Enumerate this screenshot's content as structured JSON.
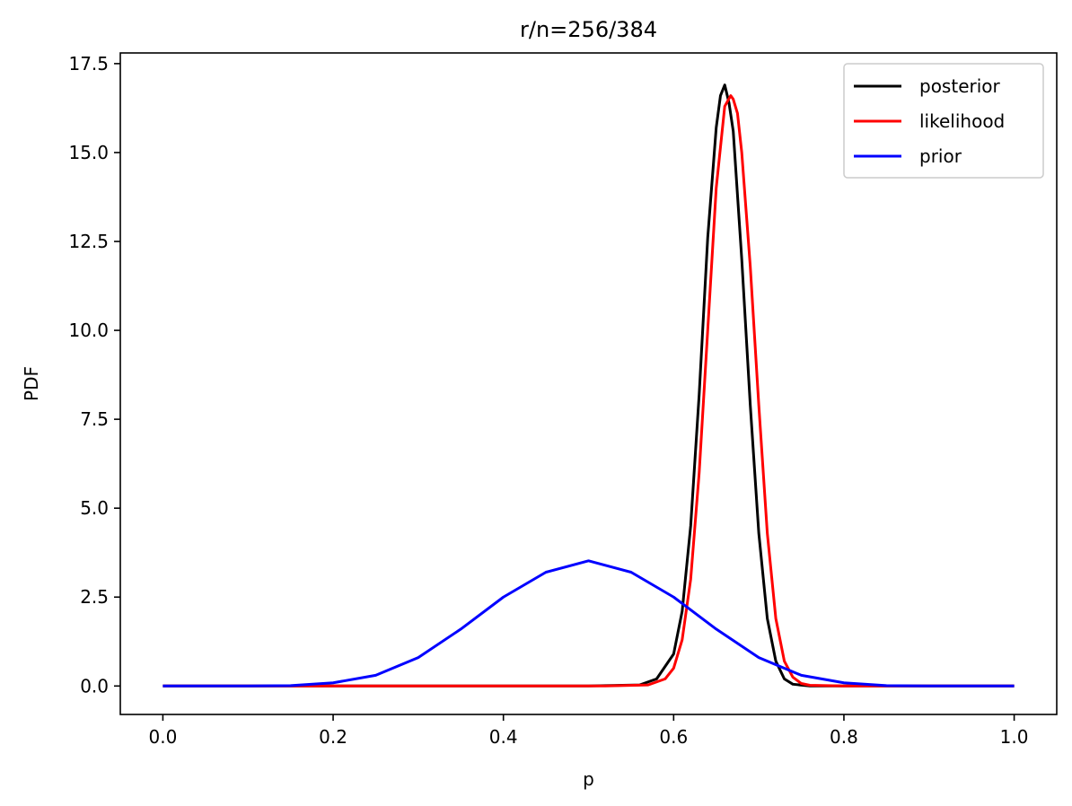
{
  "chart_data": {
    "type": "line",
    "title": "r/n=256/384",
    "xlabel": "p",
    "ylabel": "PDF",
    "xlim": [
      -0.05,
      1.05
    ],
    "ylim": [
      -0.8,
      17.8
    ],
    "xticks": [
      0.0,
      0.2,
      0.4,
      0.6,
      0.8,
      1.0
    ],
    "xtick_labels": [
      "0.0",
      "0.2",
      "0.4",
      "0.6",
      "0.8",
      "1.0"
    ],
    "yticks": [
      0.0,
      2.5,
      5.0,
      7.5,
      10.0,
      12.5,
      15.0,
      17.5
    ],
    "ytick_labels": [
      "0.0",
      "2.5",
      "5.0",
      "7.5",
      "10.0",
      "12.5",
      "15.0",
      "17.5"
    ],
    "grid": false,
    "legend_position": "top-right",
    "series": [
      {
        "name": "posterior",
        "color": "#000000",
        "x": [
          0.0,
          0.5,
          0.56,
          0.58,
          0.6,
          0.61,
          0.62,
          0.63,
          0.64,
          0.65,
          0.655,
          0.66,
          0.665,
          0.67,
          0.68,
          0.69,
          0.7,
          0.71,
          0.72,
          0.73,
          0.74,
          0.76,
          0.8,
          1.0
        ],
        "y": [
          0.0,
          0.0,
          0.03,
          0.2,
          0.9,
          2.1,
          4.5,
          8.2,
          12.6,
          15.7,
          16.6,
          16.9,
          16.4,
          15.6,
          12.0,
          7.9,
          4.3,
          1.9,
          0.7,
          0.2,
          0.05,
          0.0,
          0.0,
          0.0
        ]
      },
      {
        "name": "likelihood",
        "color": "#ff0000",
        "x": [
          0.0,
          0.52,
          0.57,
          0.59,
          0.6,
          0.61,
          0.62,
          0.63,
          0.64,
          0.65,
          0.66,
          0.667,
          0.67,
          0.675,
          0.68,
          0.69,
          0.7,
          0.71,
          0.72,
          0.73,
          0.74,
          0.75,
          0.76,
          0.8,
          1.0
        ],
        "y": [
          0.0,
          0.0,
          0.03,
          0.2,
          0.5,
          1.3,
          3.0,
          6.0,
          10.0,
          14.0,
          16.3,
          16.6,
          16.5,
          16.1,
          15.0,
          11.8,
          7.9,
          4.3,
          1.9,
          0.7,
          0.25,
          0.07,
          0.02,
          0.0,
          0.0
        ]
      },
      {
        "name": "prior",
        "color": "#0000ff",
        "x": [
          0.0,
          0.05,
          0.1,
          0.15,
          0.2,
          0.25,
          0.3,
          0.35,
          0.4,
          0.45,
          0.5,
          0.55,
          0.6,
          0.65,
          0.7,
          0.75,
          0.8,
          0.85,
          0.9,
          0.95,
          1.0
        ],
        "y": [
          0.0,
          0.0,
          0.0,
          0.01,
          0.09,
          0.3,
          0.8,
          1.6,
          2.5,
          3.2,
          3.52,
          3.2,
          2.5,
          1.6,
          0.8,
          0.3,
          0.09,
          0.01,
          0.0,
          0.0,
          0.0
        ]
      }
    ]
  }
}
